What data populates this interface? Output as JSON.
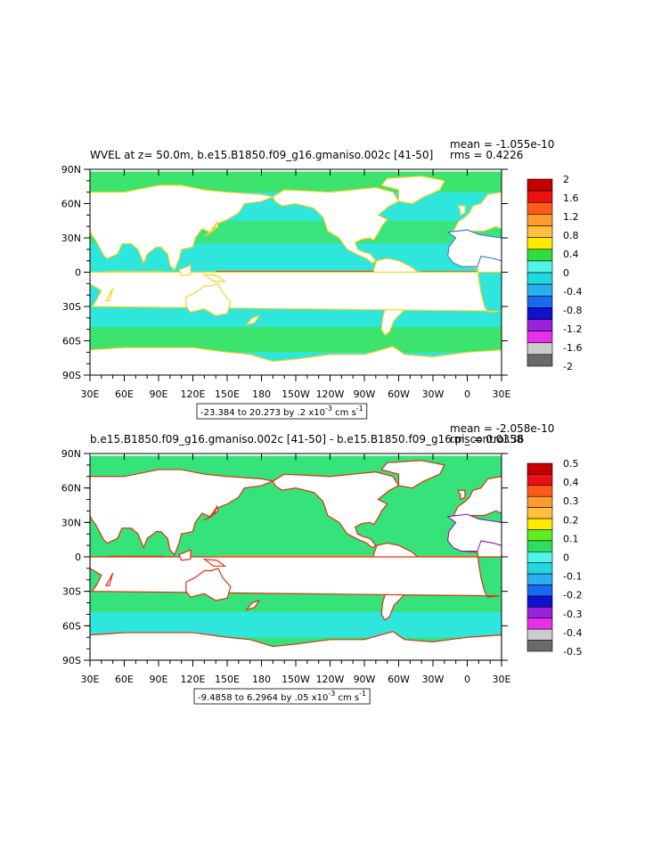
{
  "chart_data": [
    {
      "type": "heatmap",
      "title": "WVEL at z=   50.0m, b.e15.B1850.f09_g16.gmaniso.002c [41-50]",
      "stats": {
        "mean": "mean = -1.055e-10",
        "rms": "rms = 0.4226"
      },
      "range_label": "-23.384 to 20.273 by .2 x10",
      "range_exponent": "-3",
      "range_units": " cm s",
      "range_units_exponent": "-1",
      "x_ticks": [
        "30E",
        "60E",
        "90E",
        "120E",
        "150E",
        "180",
        "150W",
        "120W",
        "90W",
        "60W",
        "30W",
        "0",
        "30E"
      ],
      "x_tick_lon": [
        30,
        60,
        90,
        120,
        150,
        180,
        210,
        240,
        270,
        300,
        330,
        360,
        390
      ],
      "y_ticks": [
        "90N",
        "60N",
        "30N",
        "0",
        "30S",
        "60S",
        "90S"
      ],
      "y_tick_lat": [
        90,
        60,
        30,
        0,
        -30,
        -60,
        -90
      ],
      "xlim": [
        30,
        390
      ],
      "ylim": [
        -90,
        90
      ],
      "colorbar": {
        "labels": [
          "2",
          "1.6",
          "1.2",
          "0.8",
          "0.4",
          "0",
          "-0.4",
          "-0.8",
          "-1.2",
          "-1.6",
          "-2"
        ],
        "levels": [
          2,
          1.6,
          1.2,
          0.8,
          0.4,
          0,
          -0.4,
          -0.8,
          -1.2,
          -1.6,
          -2
        ],
        "colors": [
          "#c40000",
          "#ee1010",
          "#ff5a1a",
          "#ff9a30",
          "#ffc040",
          "#ffea00",
          "#30dd40",
          "#50f5e8",
          "#20d8e0",
          "#2ab0f0",
          "#1a6af0",
          "#1010d0",
          "#9a20e0",
          "#e830e8",
          "#cccccc",
          "#6a6a6a"
        ]
      },
      "field": {
        "background": "#2ee6dc",
        "band_north": "#3ce36c",
        "band_south": "#3ce36c",
        "equator_pos": "#e03010",
        "equator_neg": "#1a40e0",
        "coast_pos": "#ffd020",
        "coast_neg": "#1a70f0"
      }
    },
    {
      "type": "heatmap",
      "title": "b.e15.B1850.f09_g16.gmaniso.002c [41-50] - b.e15.B1850.f09_g16.pi_control.36",
      "stats": {
        "mean": "mean = -2.058e-10",
        "rms": "rms = 0.0358"
      },
      "range_label": "-9.4858 to 6.2964 by .05 x10",
      "range_exponent": "-3",
      "range_units": " cm s",
      "range_units_exponent": "-1",
      "x_ticks": [
        "30E",
        "60E",
        "90E",
        "120E",
        "150E",
        "180",
        "150W",
        "120W",
        "90W",
        "60W",
        "30W",
        "0",
        "30E"
      ],
      "x_tick_lon": [
        30,
        60,
        90,
        120,
        150,
        180,
        210,
        240,
        270,
        300,
        330,
        360,
        390
      ],
      "y_ticks": [
        "90N",
        "60N",
        "30N",
        "0",
        "30S",
        "60S",
        "90S"
      ],
      "y_tick_lat": [
        90,
        60,
        30,
        0,
        -30,
        -60,
        -90
      ],
      "xlim": [
        30,
        390
      ],
      "ylim": [
        -90,
        90
      ],
      "colorbar": {
        "labels": [
          "0.5",
          "0.4",
          "0.3",
          "0.2",
          "0.1",
          "0",
          "-0.1",
          "-0.2",
          "-0.3",
          "-0.4",
          "-0.5"
        ],
        "levels": [
          0.5,
          0.4,
          0.3,
          0.2,
          0.1,
          0,
          -0.1,
          -0.2,
          -0.3,
          -0.4,
          -0.5
        ],
        "colors": [
          "#c40000",
          "#ee1010",
          "#ff5a1a",
          "#ff9a30",
          "#ffc040",
          "#ffea00",
          "#60ee20",
          "#30dd60",
          "#50f5e8",
          "#20d8e0",
          "#2ab0f0",
          "#1a6af0",
          "#1010d0",
          "#9a20e0",
          "#e830e8",
          "#cccccc",
          "#6a6a6a"
        ]
      },
      "field": {
        "background": "#36e27a",
        "band_north": "#36e27a",
        "band_south": "#2ee6dc",
        "equator_pos": "#ffb020",
        "equator_neg": "#1a40e0",
        "coast_pos": "#e03010",
        "coast_neg": "#7020d0"
      }
    }
  ]
}
